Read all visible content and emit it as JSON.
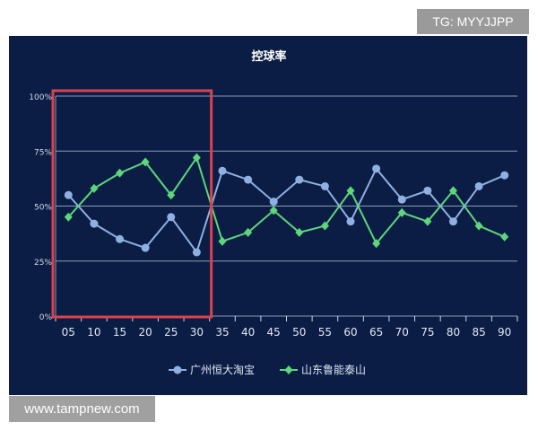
{
  "watermarks": {
    "top_right": "TG: MYYJJPP",
    "bottom_left": "www.tampnew.com"
  },
  "colors": {
    "background": "#0b1d45",
    "series1": "#8fb0e0",
    "series2": "#5ed67a",
    "highlight_box": "#d9434f"
  },
  "chart_data": {
    "type": "line",
    "title": "控球率",
    "xlabel": "",
    "ylabel": "",
    "categories": [
      "05",
      "10",
      "15",
      "20",
      "25",
      "30",
      "35",
      "40",
      "45",
      "50",
      "55",
      "60",
      "65",
      "70",
      "75",
      "80",
      "85",
      "90"
    ],
    "yticks": [
      "0%",
      "25%",
      "50%",
      "75%",
      "100%"
    ],
    "ylim": [
      0,
      100
    ],
    "grid": true,
    "legend_position": "bottom",
    "highlight_range": [
      "05",
      "30"
    ],
    "series": [
      {
        "name": "广州恒大淘宝",
        "marker": "circle",
        "values": [
          55,
          42,
          35,
          31,
          45,
          29,
          66,
          62,
          52,
          62,
          59,
          43,
          67,
          53,
          57,
          43,
          59,
          64
        ]
      },
      {
        "name": "山东鲁能泰山",
        "marker": "diamond",
        "values": [
          45,
          58,
          65,
          70,
          55,
          72,
          34,
          38,
          48,
          38,
          41,
          57,
          33,
          47,
          43,
          57,
          41,
          36
        ]
      }
    ]
  }
}
